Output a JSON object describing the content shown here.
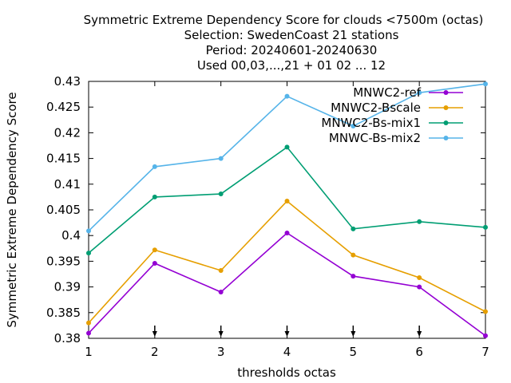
{
  "chart_data": {
    "type": "line",
    "title_lines": [
      "Symmetric Extreme Dependency Score  for clouds <7500m (octas)",
      "Selection: SwedenCoast     21 stations",
      "Period: 20240601-20240630",
      "Used 00,03,...,21 + 01 02 ... 12"
    ],
    "xlabel": "thresholds octas",
    "ylabel": "Symmetric Extreme Dependency Score",
    "x": [
      1,
      2,
      3,
      4,
      5,
      6,
      7
    ],
    "xlim": [
      1,
      7
    ],
    "ylim": [
      0.38,
      0.43
    ],
    "x_ticks": [
      "1",
      "2",
      "3",
      "4",
      "5",
      "6",
      "7"
    ],
    "y_ticks": [
      {
        "value": 0.38,
        "label": "0.38"
      },
      {
        "value": 0.385,
        "label": "0.385"
      },
      {
        "value": 0.39,
        "label": "0.39"
      },
      {
        "value": 0.395,
        "label": "0.395"
      },
      {
        "value": 0.4,
        "label": "0.4"
      },
      {
        "value": 0.405,
        "label": "0.405"
      },
      {
        "value": 0.41,
        "label": "0.41"
      },
      {
        "value": 0.415,
        "label": "0.415"
      },
      {
        "value": 0.42,
        "label": "0.42"
      },
      {
        "value": 0.425,
        "label": "0.425"
      },
      {
        "value": 0.43,
        "label": "0.43"
      }
    ],
    "legend_position": "top-right",
    "grid": false,
    "series": [
      {
        "name": "MNWC2-ref",
        "color": "#9400d3",
        "values": [
          0.381,
          0.3946,
          0.389,
          0.4005,
          0.3921,
          0.39,
          0.3805
        ]
      },
      {
        "name": "MNWC2-Bscale",
        "color": "#e69f00",
        "values": [
          0.383,
          0.3972,
          0.3932,
          0.4067,
          0.3962,
          0.3918,
          0.3852
        ]
      },
      {
        "name": "MNWC2-Bs-mix1",
        "color": "#009e73",
        "values": [
          0.3966,
          0.4075,
          0.4081,
          0.4172,
          0.4013,
          0.4027,
          0.4016
        ]
      },
      {
        "name": "MNWC-Bs-mix2",
        "color": "#56b4e9",
        "values": [
          0.4009,
          0.4134,
          0.415,
          0.4271,
          0.4213,
          0.4278,
          0.4295
        ]
      }
    ]
  }
}
